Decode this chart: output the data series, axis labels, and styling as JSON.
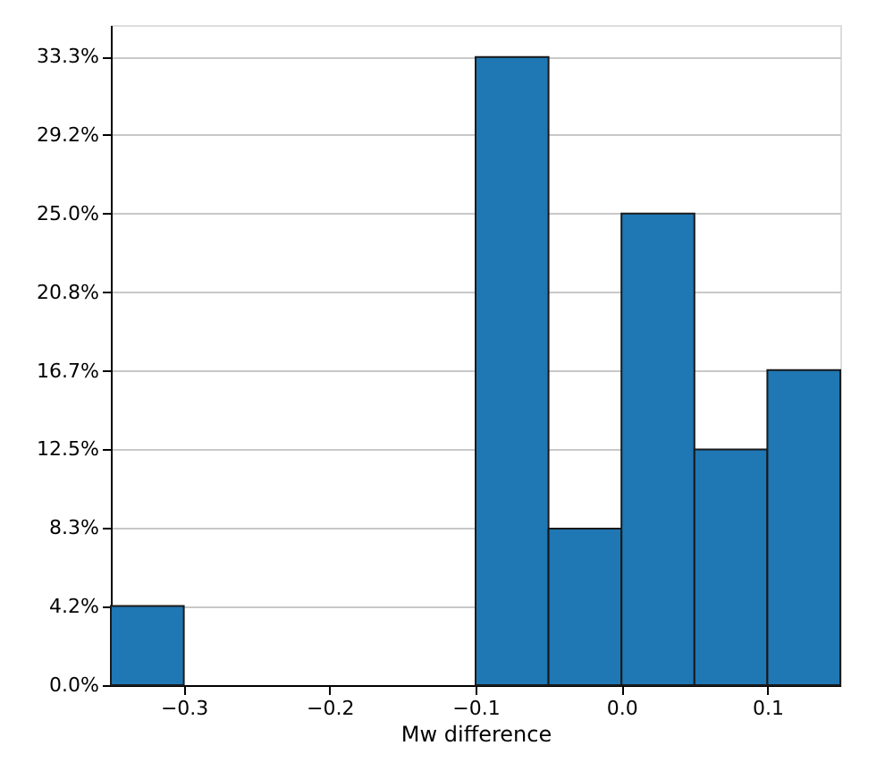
{
  "chart_data": {
    "type": "histogram",
    "xlabel": "Mw difference",
    "bins": [
      -0.35,
      -0.3,
      -0.25,
      -0.2,
      -0.15,
      -0.1,
      -0.05,
      0.0,
      0.05,
      0.1,
      0.15
    ],
    "values": [
      4.2,
      0,
      0,
      0,
      0,
      33.3,
      8.3,
      25.0,
      12.5,
      16.7
    ],
    "color": "#1f77b4",
    "xlim": [
      -0.35,
      0.15
    ],
    "xticks": [
      -0.3,
      -0.2,
      -0.1,
      {
        "value": 0,
        "label": "0.0"
      },
      0.1
    ],
    "ylim": [
      0,
      35.0
    ],
    "yticks": [
      {
        "value": 0,
        "label": "0.0%"
      },
      {
        "value": 4.17,
        "label": "4.2%"
      },
      {
        "value": 8.33,
        "label": "8.3%"
      },
      {
        "value": 12.5,
        "label": "12.5%"
      },
      {
        "value": 16.67,
        "label": "16.7%"
      },
      {
        "value": 20.83,
        "label": "20.8%"
      },
      {
        "value": 25.0,
        "label": "25.0%"
      },
      {
        "value": 29.17,
        "label": "29.2%"
      },
      {
        "value": 33.33,
        "label": "33.3%"
      }
    ],
    "grid": "y"
  }
}
